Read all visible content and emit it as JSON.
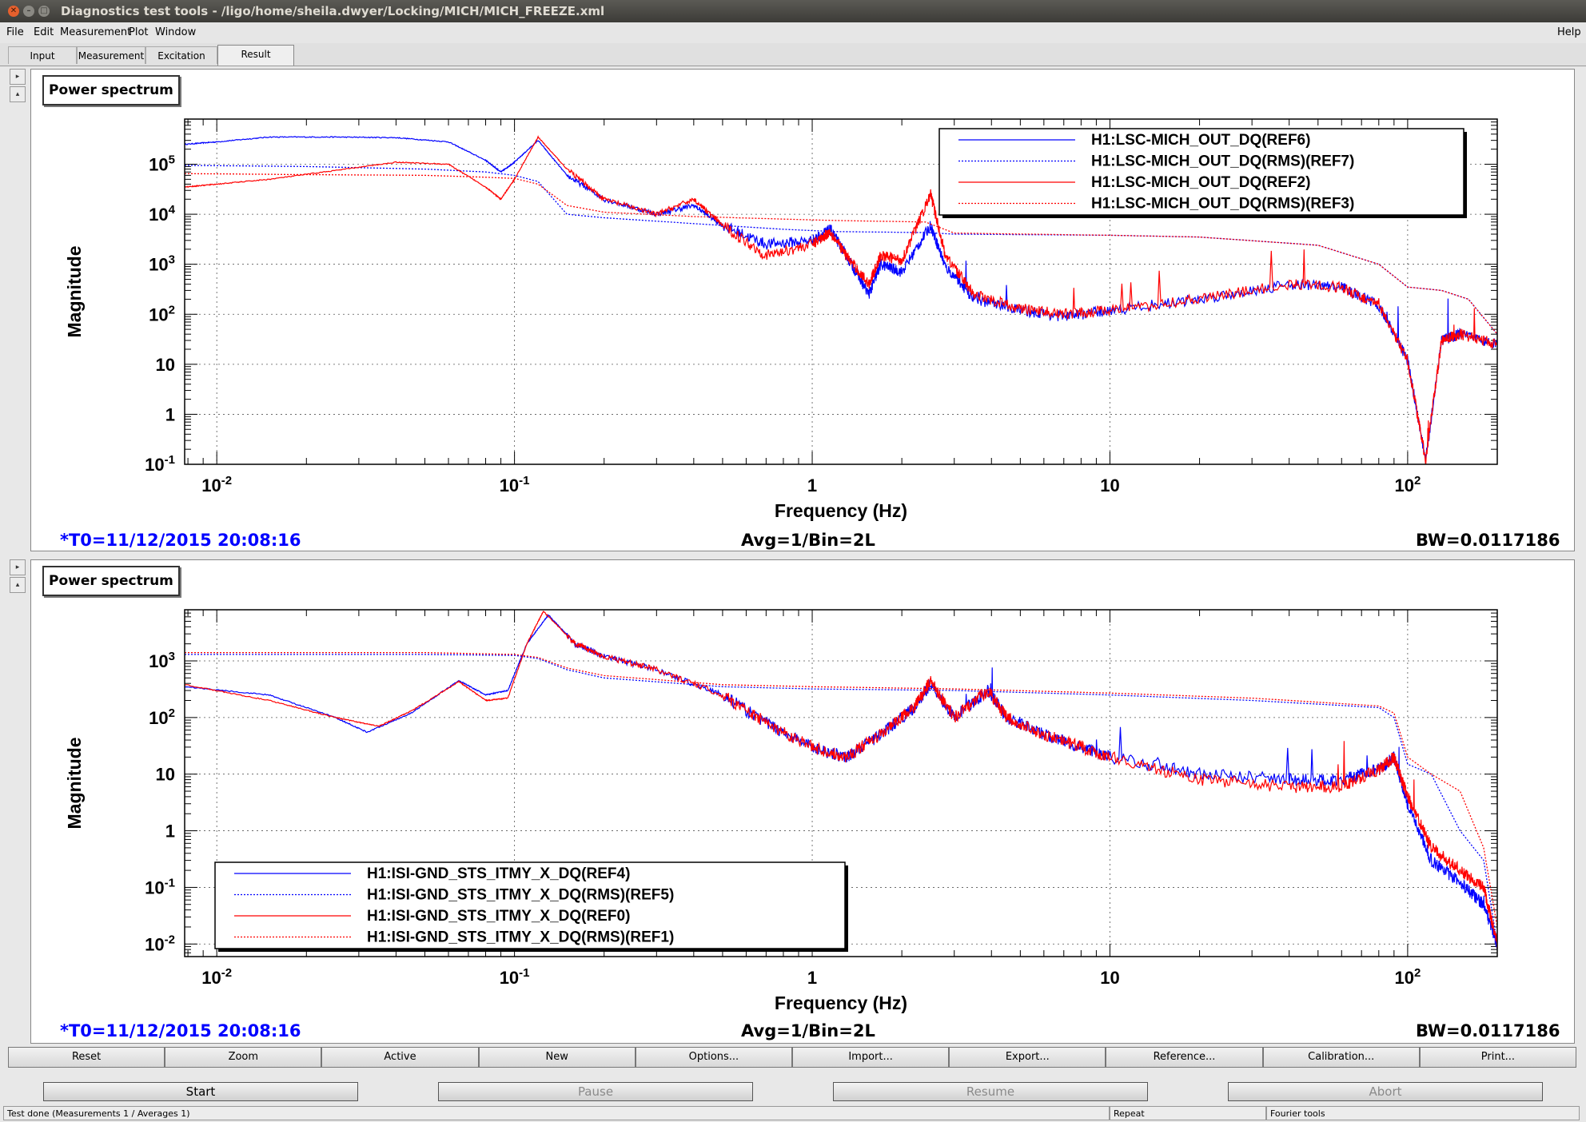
{
  "window": {
    "title": "Diagnostics test tools - /ligo/home/sheila.dwyer/Locking/MICH/MICH_FREEZE.xml"
  },
  "menu": {
    "file": "File",
    "edit": "Edit",
    "measurement": "Measurement",
    "plot": "Plot",
    "window": "Window",
    "help": "Help"
  },
  "tabs": [
    "Input",
    "Measurement",
    "Excitation",
    "Result"
  ],
  "active_tab": "Result",
  "colors": {
    "ref_blue": "#0000ff",
    "ref_red": "#ff0000",
    "foot_blue": "#0000ff"
  },
  "panels": [
    {
      "title": "Power spectrum",
      "footer": {
        "t0": "*T0=11/12/2015 20:08:16",
        "avg": "Avg=1/Bin=2L",
        "bw": "BW=0.0117186"
      }
    },
    {
      "title": "Power spectrum",
      "footer": {
        "t0": "*T0=11/12/2015 20:08:16",
        "avg": "Avg=1/Bin=2L",
        "bw": "BW=0.0117186"
      }
    }
  ],
  "toolbar": [
    "Reset",
    "Zoom",
    "Active",
    "New",
    "Options...",
    "Import...",
    "Export...",
    "Reference...",
    "Calibration...",
    "Print..."
  ],
  "actions": {
    "start": "Start",
    "pause": "Pause",
    "resume": "Resume",
    "abort": "Abort"
  },
  "status": {
    "message": "Test done (Measurements 1 / Averages 1)",
    "repeat": "Repeat",
    "fourier": "Fourier tools"
  },
  "chart_data": [
    {
      "type": "line",
      "xlabel": "Frequency (Hz)",
      "ylabel": "Magnitude",
      "xscale": "log",
      "yscale": "log",
      "xlim": [
        0.0078,
        200
      ],
      "ylim": [
        0.1,
        800000
      ],
      "xticks": [
        "10-2",
        "10-1",
        "1",
        "10",
        "102"
      ],
      "yticks": [
        "10-1",
        "1",
        "10",
        "102",
        "103",
        "104",
        "105"
      ],
      "grid": true,
      "legend_position": "top-right",
      "series": [
        {
          "name": "H1:LSC-MICH_OUT_DQ(REF6)",
          "color": "#0000ff",
          "style": "solid",
          "noisy": true,
          "points": [
            [
              0.0078,
              250000
            ],
            [
              0.01,
              280000
            ],
            [
              0.015,
              350000
            ],
            [
              0.025,
              350000
            ],
            [
              0.04,
              340000
            ],
            [
              0.06,
              280000
            ],
            [
              0.08,
              120000
            ],
            [
              0.09,
              70000
            ],
            [
              0.1,
              110000
            ],
            [
              0.12,
              300000
            ],
            [
              0.15,
              60000
            ],
            [
              0.2,
              20000
            ],
            [
              0.3,
              10000
            ],
            [
              0.4,
              15000
            ],
            [
              0.5,
              6000
            ],
            [
              0.7,
              2500
            ],
            [
              1.0,
              3000
            ],
            [
              1.15,
              5000
            ],
            [
              1.3,
              1500
            ],
            [
              1.55,
              250
            ],
            [
              1.7,
              1000
            ],
            [
              2.0,
              700
            ],
            [
              2.5,
              6000
            ],
            [
              2.8,
              900
            ],
            [
              3.5,
              200
            ],
            [
              5,
              120
            ],
            [
              7,
              90
            ],
            [
              10,
              120
            ],
            [
              20,
              200
            ],
            [
              40,
              400
            ],
            [
              60,
              350
            ],
            [
              80,
              150
            ],
            [
              100,
              12
            ],
            [
              115,
              0.12
            ],
            [
              130,
              30
            ],
            [
              150,
              40
            ],
            [
              200,
              25
            ]
          ]
        },
        {
          "name": "H1:LSC-MICH_OUT_DQ(RMS)(REF7)",
          "color": "#0000ff",
          "style": "dotted",
          "noisy": false,
          "points": [
            [
              0.0078,
              95000
            ],
            [
              0.02,
              90000
            ],
            [
              0.05,
              80000
            ],
            [
              0.08,
              70000
            ],
            [
              0.1,
              60000
            ],
            [
              0.12,
              45000
            ],
            [
              0.15,
              10000
            ],
            [
              0.2,
              8500
            ],
            [
              0.4,
              6500
            ],
            [
              0.8,
              5000
            ],
            [
              1.2,
              4500
            ],
            [
              2.4,
              4300
            ],
            [
              3,
              4000
            ],
            [
              10,
              3800
            ],
            [
              20,
              3500
            ],
            [
              50,
              2400
            ],
            [
              80,
              1000
            ],
            [
              100,
              350
            ],
            [
              130,
              300
            ],
            [
              160,
              200
            ],
            [
              200,
              40
            ]
          ]
        },
        {
          "name": "H1:LSC-MICH_OUT_DQ(REF2)",
          "color": "#ff0000",
          "style": "solid",
          "noisy": true,
          "points": [
            [
              0.0078,
              35000
            ],
            [
              0.01,
              40000
            ],
            [
              0.015,
              50000
            ],
            [
              0.025,
              75000
            ],
            [
              0.04,
              110000
            ],
            [
              0.06,
              100000
            ],
            [
              0.08,
              35000
            ],
            [
              0.09,
              20000
            ],
            [
              0.1,
              50000
            ],
            [
              0.12,
              350000
            ],
            [
              0.15,
              80000
            ],
            [
              0.2,
              20000
            ],
            [
              0.3,
              10000
            ],
            [
              0.4,
              20000
            ],
            [
              0.5,
              6000
            ],
            [
              0.7,
              1500
            ],
            [
              1.0,
              2500
            ],
            [
              1.15,
              4500
            ],
            [
              1.3,
              1500
            ],
            [
              1.55,
              400
            ],
            [
              1.7,
              1500
            ],
            [
              2.0,
              1200
            ],
            [
              2.5,
              25000
            ],
            [
              2.8,
              1500
            ],
            [
              3.5,
              250
            ],
            [
              5,
              130
            ],
            [
              7,
              100
            ],
            [
              10,
              120
            ],
            [
              20,
              200
            ],
            [
              40,
              400
            ],
            [
              60,
              350
            ],
            [
              80,
              150
            ],
            [
              100,
              12
            ],
            [
              115,
              0.12
            ],
            [
              130,
              30
            ],
            [
              150,
              40
            ],
            [
              200,
              25
            ]
          ]
        },
        {
          "name": "H1:LSC-MICH_OUT_DQ(RMS)(REF3)",
          "color": "#ff0000",
          "style": "dotted",
          "noisy": false,
          "points": [
            [
              0.0078,
              65000
            ],
            [
              0.02,
              62000
            ],
            [
              0.05,
              60000
            ],
            [
              0.08,
              55000
            ],
            [
              0.1,
              52000
            ],
            [
              0.12,
              40000
            ],
            [
              0.15,
              15000
            ],
            [
              0.2,
              11000
            ],
            [
              0.4,
              9000
            ],
            [
              0.8,
              8000
            ],
            [
              1.2,
              7500
            ],
            [
              2.4,
              7000
            ],
            [
              3,
              4200
            ],
            [
              10,
              3800
            ],
            [
              20,
              3500
            ],
            [
              50,
              2400
            ],
            [
              80,
              1000
            ],
            [
              100,
              350
            ],
            [
              130,
              300
            ],
            [
              160,
              200
            ],
            [
              200,
              40
            ]
          ]
        }
      ]
    },
    {
      "type": "line",
      "xlabel": "Frequency (Hz)",
      "ylabel": "Magnitude",
      "xscale": "log",
      "yscale": "log",
      "xlim": [
        0.0078,
        200
      ],
      "ylim": [
        0.006,
        8000
      ],
      "xticks": [
        "10-2",
        "10-1",
        "1",
        "10",
        "102"
      ],
      "yticks": [
        "10-2",
        "10-1",
        "1",
        "10",
        "102",
        "103"
      ],
      "grid": true,
      "legend_position": "bottom-left",
      "series": [
        {
          "name": "H1:ISI-GND_STS_ITMY_X_DQ(REF4)",
          "color": "#0000ff",
          "style": "solid",
          "noisy": true,
          "points": [
            [
              0.0078,
              350
            ],
            [
              0.015,
              250
            ],
            [
              0.025,
              100
            ],
            [
              0.032,
              55
            ],
            [
              0.045,
              120
            ],
            [
              0.065,
              450
            ],
            [
              0.08,
              250
            ],
            [
              0.095,
              300
            ],
            [
              0.11,
              2000
            ],
            [
              0.13,
              6500
            ],
            [
              0.16,
              2000
            ],
            [
              0.2,
              1200
            ],
            [
              0.3,
              700
            ],
            [
              0.5,
              250
            ],
            [
              0.7,
              80
            ],
            [
              1.0,
              30
            ],
            [
              1.3,
              20
            ],
            [
              1.7,
              50
            ],
            [
              2.2,
              150
            ],
            [
              2.5,
              400
            ],
            [
              3,
              100
            ],
            [
              3.9,
              300
            ],
            [
              4.5,
              100
            ],
            [
              6,
              50
            ],
            [
              8,
              30
            ],
            [
              10,
              20
            ],
            [
              20,
              10
            ],
            [
              40,
              8
            ],
            [
              60,
              8
            ],
            [
              80,
              12
            ],
            [
              90,
              20
            ],
            [
              100,
              3
            ],
            [
              120,
              0.3
            ],
            [
              150,
              0.12
            ],
            [
              180,
              0.05
            ],
            [
              200,
              0.01
            ]
          ]
        },
        {
          "name": "H1:ISI-GND_STS_ITMY_X_DQ(RMS)(REF5)",
          "color": "#0000ff",
          "style": "dotted",
          "noisy": false,
          "points": [
            [
              0.0078,
              1300
            ],
            [
              0.05,
              1300
            ],
            [
              0.1,
              1250
            ],
            [
              0.12,
              1100
            ],
            [
              0.15,
              700
            ],
            [
              0.2,
              500
            ],
            [
              0.5,
              350
            ],
            [
              1,
              320
            ],
            [
              3,
              300
            ],
            [
              10,
              250
            ],
            [
              30,
              200
            ],
            [
              80,
              150
            ],
            [
              90,
              100
            ],
            [
              100,
              15
            ],
            [
              120,
              10
            ],
            [
              150,
              1
            ],
            [
              180,
              0.3
            ],
            [
              200,
              0.01
            ]
          ]
        },
        {
          "name": "H1:ISI-GND_STS_ITMY_X_DQ(REF0)",
          "color": "#ff0000",
          "style": "solid",
          "noisy": true,
          "points": [
            [
              0.0078,
              380
            ],
            [
              0.015,
              200
            ],
            [
              0.025,
              100
            ],
            [
              0.035,
              70
            ],
            [
              0.045,
              130
            ],
            [
              0.065,
              430
            ],
            [
              0.08,
              200
            ],
            [
              0.095,
              220
            ],
            [
              0.11,
              2000
            ],
            [
              0.125,
              7500
            ],
            [
              0.16,
              2000
            ],
            [
              0.2,
              1200
            ],
            [
              0.3,
              700
            ],
            [
              0.5,
              250
            ],
            [
              0.7,
              80
            ],
            [
              1.0,
              30
            ],
            [
              1.3,
              20
            ],
            [
              1.7,
              50
            ],
            [
              2.2,
              150
            ],
            [
              2.5,
              450
            ],
            [
              3,
              100
            ],
            [
              3.9,
              300
            ],
            [
              4.5,
              100
            ],
            [
              6,
              50
            ],
            [
              8,
              30
            ],
            [
              10,
              20
            ],
            [
              20,
              8
            ],
            [
              40,
              6
            ],
            [
              60,
              6
            ],
            [
              80,
              12
            ],
            [
              90,
              20
            ],
            [
              100,
              4
            ],
            [
              120,
              0.5
            ],
            [
              150,
              0.2
            ],
            [
              180,
              0.1
            ],
            [
              200,
              0.01
            ]
          ]
        },
        {
          "name": "H1:ISI-GND_STS_ITMY_X_DQ(RMS)(REF1)",
          "color": "#ff0000",
          "style": "dotted",
          "noisy": false,
          "points": [
            [
              0.0078,
              1400
            ],
            [
              0.05,
              1400
            ],
            [
              0.1,
              1300
            ],
            [
              0.12,
              1150
            ],
            [
              0.15,
              750
            ],
            [
              0.2,
              550
            ],
            [
              0.5,
              380
            ],
            [
              1,
              350
            ],
            [
              3,
              320
            ],
            [
              10,
              270
            ],
            [
              30,
              220
            ],
            [
              80,
              160
            ],
            [
              90,
              120
            ],
            [
              100,
              20
            ],
            [
              120,
              10
            ],
            [
              150,
              5
            ],
            [
              180,
              0.5
            ],
            [
              200,
              0.02
            ]
          ]
        }
      ]
    }
  ]
}
